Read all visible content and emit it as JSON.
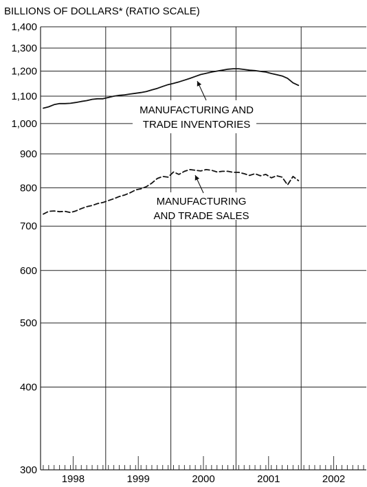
{
  "chart_data": {
    "type": "line",
    "title": "",
    "ylabel": "BILLIONS OF DOLLARS* (RATIO SCALE)",
    "xlabel": "",
    "y_scale": "log",
    "ylim": [
      300,
      1400
    ],
    "xlim": [
      "1998-01",
      "2002-12"
    ],
    "grid": true,
    "yticks": [
      300,
      400,
      500,
      600,
      700,
      800,
      900,
      1000,
      1100,
      1200,
      1300,
      1400
    ],
    "ytick_labels": [
      "300",
      "400",
      "500",
      "600",
      "700",
      "800",
      "900",
      "1,000",
      "1,100",
      "1,200",
      "1,300",
      "1,400"
    ],
    "year_labels": [
      "1998",
      "1999",
      "2000",
      "2001",
      "2002"
    ],
    "shown_tick_labels": [
      "400",
      "500",
      "600",
      "700",
      "800",
      "900",
      "1,000",
      "1,100",
      "1,200",
      "1,300",
      "1,400"
    ],
    "x": [
      "1998-01",
      "1998-02",
      "1998-03",
      "1998-04",
      "1998-05",
      "1998-06",
      "1998-07",
      "1998-08",
      "1998-09",
      "1998-10",
      "1998-11",
      "1998-12",
      "1999-01",
      "1999-02",
      "1999-03",
      "1999-04",
      "1999-05",
      "1999-06",
      "1999-07",
      "1999-08",
      "1999-09",
      "1999-10",
      "1999-11",
      "1999-12",
      "2000-01",
      "2000-02",
      "2000-03",
      "2000-04",
      "2000-05",
      "2000-06",
      "2000-07",
      "2000-08",
      "2000-09",
      "2000-10",
      "2000-11",
      "2000-12",
      "2001-01",
      "2001-02",
      "2001-03",
      "2001-04",
      "2001-05",
      "2001-06",
      "2001-07",
      "2001-08",
      "2001-09",
      "2001-10",
      "2001-11",
      "2001-12"
    ],
    "series": [
      {
        "name": "MANUFACTURING AND TRADE INVENTORIES",
        "style": "solid",
        "annotation_lines": [
          "MANUFACTURING AND",
          "TRADE INVENTORIES"
        ],
        "values": [
          1055,
          1060,
          1068,
          1072,
          1072,
          1073,
          1076,
          1080,
          1083,
          1088,
          1090,
          1090,
          1095,
          1100,
          1103,
          1105,
          1108,
          1111,
          1114,
          1118,
          1124,
          1130,
          1138,
          1145,
          1150,
          1156,
          1163,
          1170,
          1178,
          1186,
          1191,
          1196,
          1200,
          1204,
          1208,
          1210,
          1210,
          1207,
          1204,
          1202,
          1199,
          1196,
          1190,
          1185,
          1180,
          1170,
          1152,
          1142
        ]
      },
      {
        "name": "MANUFACTURING AND TRADE SALES",
        "style": "dashed",
        "annotation_lines": [
          "MANUFACTURING",
          "AND TRADE SALES"
        ],
        "values": [
          730,
          737,
          738,
          736,
          737,
          734,
          738,
          744,
          749,
          752,
          757,
          760,
          765,
          770,
          776,
          780,
          786,
          794,
          797,
          803,
          813,
          826,
          832,
          830,
          845,
          838,
          847,
          852,
          850,
          848,
          852,
          850,
          845,
          847,
          847,
          844,
          844,
          840,
          835,
          840,
          834,
          838,
          828,
          834,
          830,
          808,
          832,
          820
        ]
      }
    ]
  },
  "colors": {
    "line": "#111111",
    "grid": "#222222",
    "background": "#ffffff"
  }
}
